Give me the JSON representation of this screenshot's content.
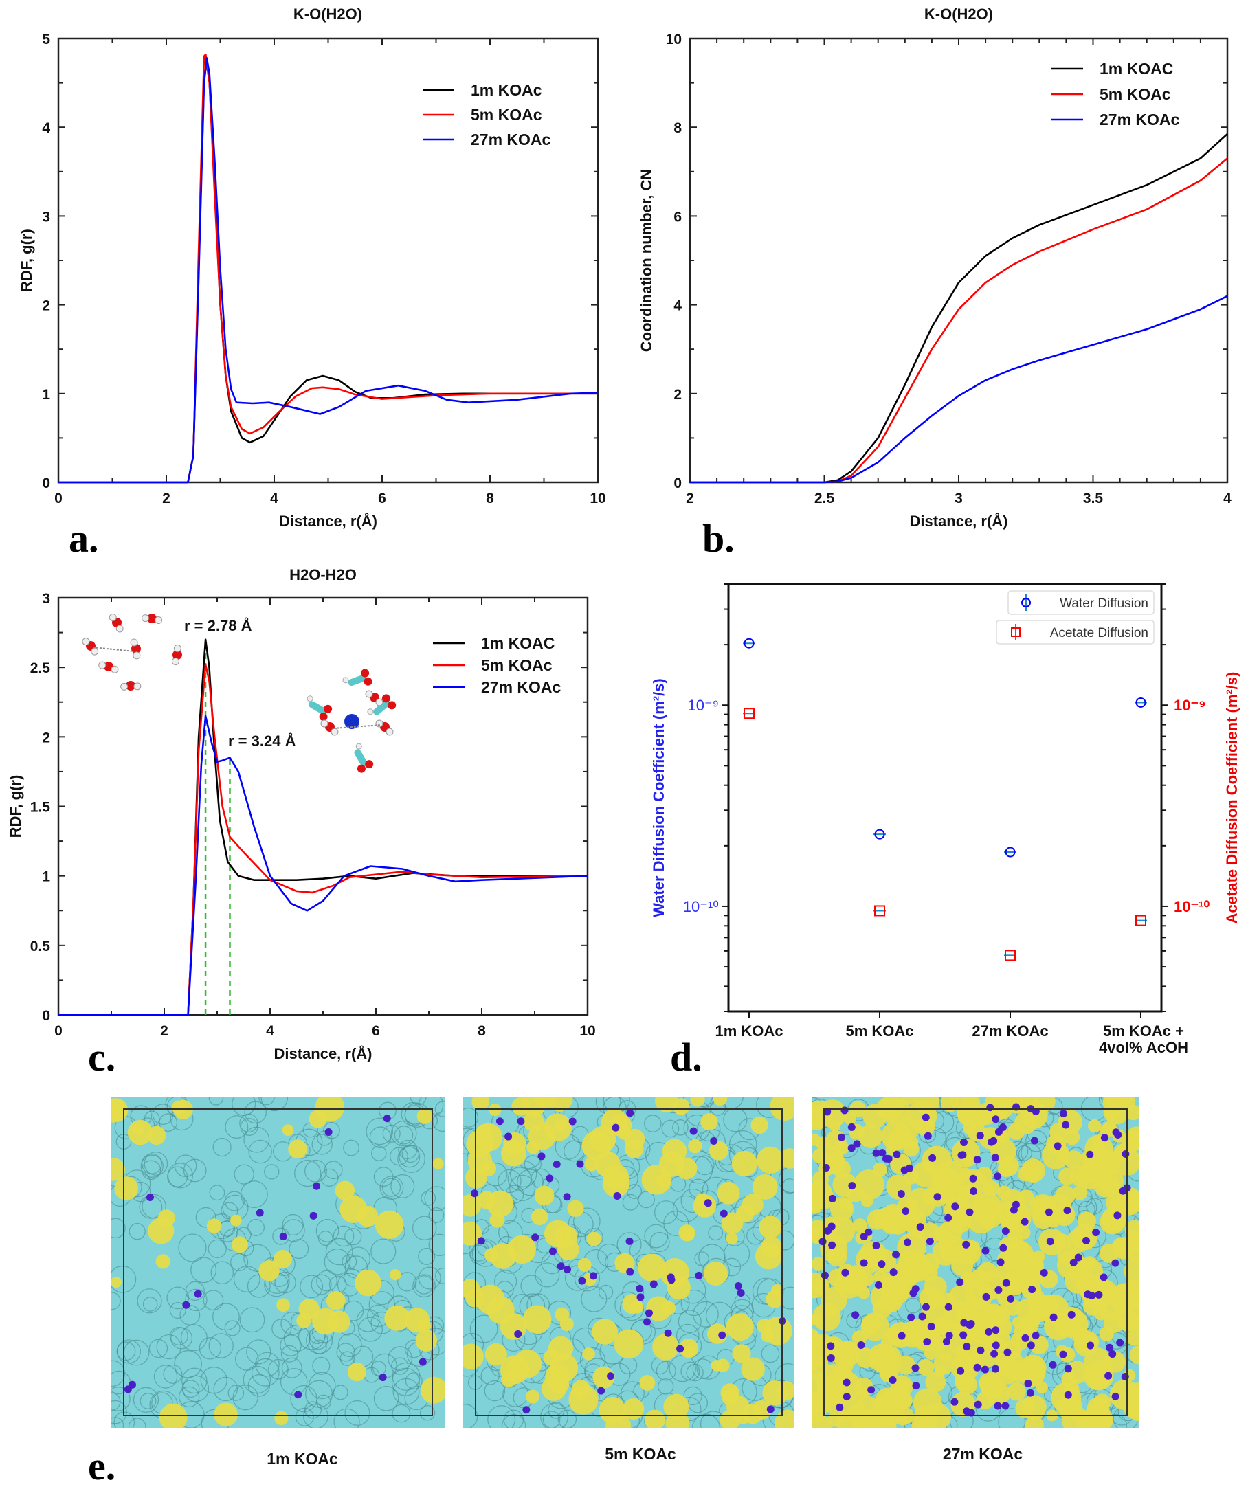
{
  "panel_letters": [
    "a.",
    "b.",
    "c.",
    "d.",
    "e."
  ],
  "chart_data": [
    {
      "type": "line",
      "title": "K-O(H2O)",
      "xlabel": "Distance, r(Å)",
      "ylabel": "RDF, g(r)",
      "xlim": [
        0,
        10
      ],
      "ylim": [
        0,
        5
      ],
      "xticks": [
        0,
        2,
        4,
        6,
        8,
        10
      ],
      "yticks": [
        0,
        1,
        2,
        3,
        4,
        5
      ],
      "grid": false,
      "legend": "top-right",
      "series": [
        {
          "name": "1m KOAc",
          "color": "#000000",
          "points": [
            [
              0,
              0
            ],
            [
              2.4,
              0
            ],
            [
              2.5,
              0.3
            ],
            [
              2.6,
              2.4
            ],
            [
              2.7,
              4.55
            ],
            [
              2.75,
              4.72
            ],
            [
              2.8,
              4.5
            ],
            [
              2.9,
              3.3
            ],
            [
              3.0,
              2.0
            ],
            [
              3.1,
              1.2
            ],
            [
              3.2,
              0.8
            ],
            [
              3.4,
              0.5
            ],
            [
              3.55,
              0.45
            ],
            [
              3.8,
              0.52
            ],
            [
              4.0,
              0.7
            ],
            [
              4.3,
              0.97
            ],
            [
              4.6,
              1.15
            ],
            [
              4.9,
              1.2
            ],
            [
              5.2,
              1.15
            ],
            [
              5.5,
              1.02
            ],
            [
              5.8,
              0.95
            ],
            [
              6.2,
              0.95
            ],
            [
              6.8,
              0.99
            ],
            [
              7.5,
              1.0
            ],
            [
              10,
              1.0
            ]
          ]
        },
        {
          "name": "5m KOAc",
          "color": "#ff0000",
          "points": [
            [
              0,
              0
            ],
            [
              2.4,
              0
            ],
            [
              2.5,
              0.3
            ],
            [
              2.6,
              2.6
            ],
            [
              2.7,
              4.8
            ],
            [
              2.73,
              4.82
            ],
            [
              2.8,
              4.5
            ],
            [
              2.9,
              3.2
            ],
            [
              3.0,
              2.0
            ],
            [
              3.1,
              1.2
            ],
            [
              3.2,
              0.85
            ],
            [
              3.4,
              0.6
            ],
            [
              3.55,
              0.55
            ],
            [
              3.8,
              0.62
            ],
            [
              4.1,
              0.8
            ],
            [
              4.4,
              0.97
            ],
            [
              4.7,
              1.06
            ],
            [
              4.9,
              1.07
            ],
            [
              5.2,
              1.05
            ],
            [
              5.5,
              0.99
            ],
            [
              6.0,
              0.94
            ],
            [
              6.5,
              0.96
            ],
            [
              7.0,
              0.98
            ],
            [
              8,
              1.0
            ],
            [
              10,
              1.0
            ]
          ]
        },
        {
          "name": "27m KOAc",
          "color": "#0000ff",
          "points": [
            [
              0,
              0
            ],
            [
              2.4,
              0
            ],
            [
              2.5,
              0.3
            ],
            [
              2.6,
              2.3
            ],
            [
              2.7,
              4.5
            ],
            [
              2.75,
              4.78
            ],
            [
              2.8,
              4.6
            ],
            [
              2.9,
              3.6
            ],
            [
              3.0,
              2.4
            ],
            [
              3.1,
              1.5
            ],
            [
              3.2,
              1.05
            ],
            [
              3.3,
              0.9
            ],
            [
              3.6,
              0.89
            ],
            [
              3.9,
              0.9
            ],
            [
              4.3,
              0.85
            ],
            [
              4.85,
              0.77
            ],
            [
              5.2,
              0.85
            ],
            [
              5.7,
              1.03
            ],
            [
              6.3,
              1.09
            ],
            [
              6.8,
              1.03
            ],
            [
              7.2,
              0.93
            ],
            [
              7.6,
              0.9
            ],
            [
              8.5,
              0.93
            ],
            [
              9.5,
              1.0
            ],
            [
              10,
              1.01
            ]
          ]
        }
      ]
    },
    {
      "type": "line",
      "title": "K-O(H2O)",
      "xlabel": "Distance, r(Å)",
      "ylabel": "Coordination number, CN",
      "xlim": [
        2,
        4
      ],
      "ylim": [
        0,
        10
      ],
      "xticks": [
        2,
        2.5,
        3,
        3.5,
        4
      ],
      "yticks": [
        0,
        2,
        4,
        6,
        8,
        10
      ],
      "grid": false,
      "legend": "top-right",
      "series": [
        {
          "name": "1m KOAC",
          "color": "#000000",
          "points": [
            [
              2,
              0
            ],
            [
              2.5,
              0
            ],
            [
              2.55,
              0.05
            ],
            [
              2.6,
              0.25
            ],
            [
              2.7,
              1.0
            ],
            [
              2.8,
              2.2
            ],
            [
              2.9,
              3.5
            ],
            [
              3.0,
              4.5
            ],
            [
              3.1,
              5.1
            ],
            [
              3.2,
              5.5
            ],
            [
              3.3,
              5.8
            ],
            [
              3.5,
              6.25
            ],
            [
              3.7,
              6.7
            ],
            [
              3.9,
              7.3
            ],
            [
              4.0,
              7.85
            ]
          ]
        },
        {
          "name": "5m KOAc",
          "color": "#ff0000",
          "points": [
            [
              2,
              0
            ],
            [
              2.5,
              0
            ],
            [
              2.55,
              0.02
            ],
            [
              2.6,
              0.15
            ],
            [
              2.7,
              0.8
            ],
            [
              2.8,
              1.9
            ],
            [
              2.9,
              3.0
            ],
            [
              3.0,
              3.9
            ],
            [
              3.1,
              4.5
            ],
            [
              3.2,
              4.9
            ],
            [
              3.3,
              5.2
            ],
            [
              3.5,
              5.7
            ],
            [
              3.7,
              6.15
            ],
            [
              3.9,
              6.8
            ],
            [
              4.0,
              7.3
            ]
          ]
        },
        {
          "name": "27m KOAc",
          "color": "#0000ff",
          "points": [
            [
              2,
              0
            ],
            [
              2.5,
              0
            ],
            [
              2.55,
              0.02
            ],
            [
              2.6,
              0.1
            ],
            [
              2.7,
              0.45
            ],
            [
              2.8,
              1.0
            ],
            [
              2.9,
              1.5
            ],
            [
              3.0,
              1.95
            ],
            [
              3.1,
              2.3
            ],
            [
              3.2,
              2.55
            ],
            [
              3.3,
              2.75
            ],
            [
              3.5,
              3.1
            ],
            [
              3.7,
              3.45
            ],
            [
              3.9,
              3.9
            ],
            [
              4.0,
              4.2
            ]
          ]
        }
      ]
    },
    {
      "type": "line",
      "title": "H2O-H2O",
      "xlabel": "Distance,  r(Å)",
      "ylabel": "RDF, g(r)",
      "xlim": [
        0,
        10
      ],
      "ylim": [
        0,
        3
      ],
      "xticks": [
        0,
        2,
        4,
        6,
        8,
        10
      ],
      "yticks": [
        0,
        0.5,
        1,
        1.5,
        2,
        2.5,
        3
      ],
      "grid": false,
      "legend": "top-right",
      "annotations": [
        {
          "text": "r = 2.78 Å",
          "x": 2.78,
          "y": 2.7
        },
        {
          "text": "r = 3.24 Å",
          "x": 3.24,
          "y": 1.85
        }
      ],
      "reference_lines_color": "#33bb33",
      "series": [
        {
          "name": "1m KOAC",
          "color": "#000000",
          "points": [
            [
              0,
              0
            ],
            [
              2.45,
              0
            ],
            [
              2.55,
              0.8
            ],
            [
              2.65,
              2.0
            ],
            [
              2.78,
              2.7
            ],
            [
              2.85,
              2.5
            ],
            [
              2.95,
              1.9
            ],
            [
              3.05,
              1.4
            ],
            [
              3.2,
              1.1
            ],
            [
              3.4,
              1.0
            ],
            [
              3.7,
              0.97
            ],
            [
              4.5,
              0.97
            ],
            [
              5.0,
              0.98
            ],
            [
              5.5,
              1.0
            ],
            [
              6.0,
              0.98
            ],
            [
              6.7,
              1.02
            ],
            [
              7.5,
              1.0
            ],
            [
              10,
              1.0
            ]
          ]
        },
        {
          "name": "5m KOAc",
          "color": "#ff0000",
          "points": [
            [
              0,
              0
            ],
            [
              2.45,
              0
            ],
            [
              2.55,
              0.8
            ],
            [
              2.65,
              1.9
            ],
            [
              2.78,
              2.52
            ],
            [
              2.85,
              2.4
            ],
            [
              2.95,
              2.0
            ],
            [
              3.1,
              1.5
            ],
            [
              3.24,
              1.28
            ],
            [
              3.5,
              1.17
            ],
            [
              4.0,
              0.97
            ],
            [
              4.5,
              0.89
            ],
            [
              4.8,
              0.88
            ],
            [
              5.2,
              0.93
            ],
            [
              5.5,
              0.99
            ],
            [
              6.5,
              1.03
            ],
            [
              7.0,
              1.01
            ],
            [
              8,
              0.99
            ],
            [
              10,
              1.0
            ]
          ]
        },
        {
          "name": "27m KOAc",
          "color": "#0000ff",
          "points": [
            [
              0,
              0
            ],
            [
              2.45,
              0
            ],
            [
              2.6,
              1.0
            ],
            [
              2.7,
              1.8
            ],
            [
              2.78,
              2.15
            ],
            [
              2.9,
              1.95
            ],
            [
              3.0,
              1.82
            ],
            [
              3.1,
              1.83
            ],
            [
              3.24,
              1.85
            ],
            [
              3.4,
              1.75
            ],
            [
              3.7,
              1.35
            ],
            [
              4.0,
              1.0
            ],
            [
              4.4,
              0.8
            ],
            [
              4.7,
              0.75
            ],
            [
              5.0,
              0.82
            ],
            [
              5.4,
              1.0
            ],
            [
              5.9,
              1.07
            ],
            [
              6.5,
              1.05
            ],
            [
              7.0,
              1.0
            ],
            [
              7.5,
              0.96
            ],
            [
              8,
              0.97
            ],
            [
              10,
              1.0
            ]
          ]
        }
      ]
    },
    {
      "type": "scatter",
      "title": "",
      "ylabel": "Water Diffusion Coefficient (m²/s)",
      "ylabel_right": "Acetate Diffusion Coefficient (m²/s)",
      "yscale": "log",
      "ylim": [
        3e-11,
        4e-09
      ],
      "categories": [
        "1m KOAc",
        "5m KOAc",
        "27m KOAc",
        "5m KOAc +\n4vol% AcOH"
      ],
      "yticks": [
        {
          "value": 1e-09,
          "label": "10⁻⁹"
        },
        {
          "value": 1e-10,
          "label": "10⁻¹⁰"
        }
      ],
      "legend": "top-right",
      "series": [
        {
          "name": "Water Diffusion",
          "color": "#0000ff",
          "marker": "circle",
          "values": [
            2.03e-09,
            2.28e-10,
            1.86e-10,
            1.03e-09
          ]
        },
        {
          "name": "Acetate Diffusion",
          "color": "#ff0000",
          "marker": "square",
          "values": [
            9.1e-10,
            9.5e-11,
            5.7e-11,
            8.5e-11
          ]
        }
      ]
    }
  ],
  "snapshots": {
    "water_color": "#7fd3d8",
    "acetate_color": "#e6dc4a",
    "potassium_color": "#4b1fc8",
    "items": [
      {
        "label": "1m KOAc",
        "acetate_fraction": 0.05
      },
      {
        "label": "5m KOAc",
        "acetate_fraction": 0.16
      },
      {
        "label": "27m KOAc",
        "acetate_fraction": 0.55
      }
    ]
  }
}
